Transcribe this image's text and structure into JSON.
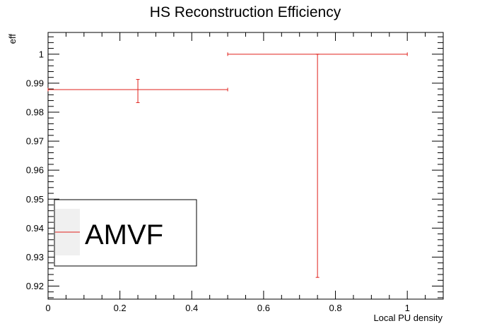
{
  "chart_data": {
    "type": "scatter",
    "title": "HS Reconstruction Efficiency",
    "xlabel": "Local PU density",
    "ylabel": "eff",
    "xlim": [
      0,
      1.1
    ],
    "ylim": [
      0.9155,
      1.0075
    ],
    "x_ticks": [
      {
        "v": 0,
        "label": "0"
      },
      {
        "v": 0.2,
        "label": "0.2"
      },
      {
        "v": 0.4,
        "label": "0.4"
      },
      {
        "v": 0.6,
        "label": "0.6"
      },
      {
        "v": 0.8,
        "label": "0.8"
      },
      {
        "v": 1.0,
        "label": "1"
      }
    ],
    "y_ticks": [
      {
        "v": 0.92,
        "label": "0.92"
      },
      {
        "v": 0.93,
        "label": "0.93"
      },
      {
        "v": 0.94,
        "label": "0.94"
      },
      {
        "v": 0.95,
        "label": "0.95"
      },
      {
        "v": 0.96,
        "label": "0.96"
      },
      {
        "v": 0.97,
        "label": "0.97"
      },
      {
        "v": 0.98,
        "label": "0.98"
      },
      {
        "v": 0.99,
        "label": "0.99"
      },
      {
        "v": 1.0,
        "label": "1"
      }
    ],
    "grid": false,
    "legend_position": "bottom-left",
    "series": [
      {
        "name": "AMVF",
        "color": "#e0201b",
        "points": [
          {
            "x": 0.25,
            "y": 0.9878,
            "x_low": 0.0,
            "x_high": 0.5,
            "y_low": 0.9833,
            "y_high": 0.9913
          },
          {
            "x": 0.75,
            "y": 1.0,
            "x_low": 0.5,
            "x_high": 1.0,
            "y_low": 0.923,
            "y_high": 1.0
          }
        ]
      }
    ]
  }
}
